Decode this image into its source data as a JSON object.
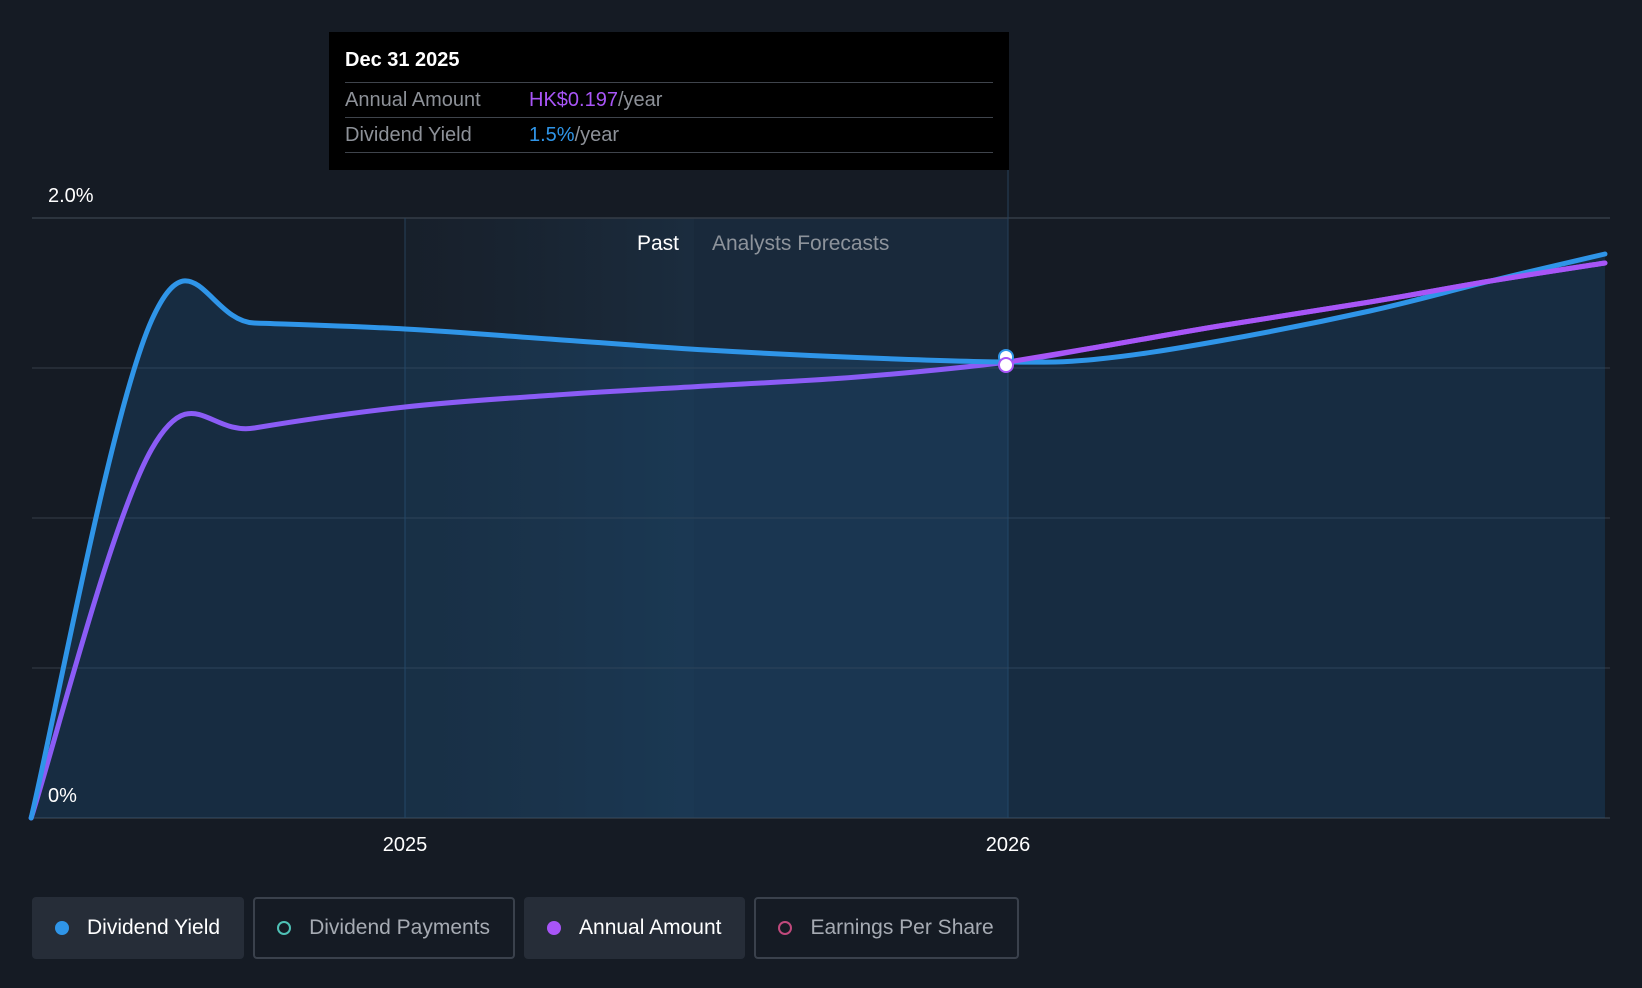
{
  "tooltip": {
    "date": "Dec 31 2025",
    "rows": [
      {
        "label": "Annual Amount",
        "value": "HK$0.197",
        "suffix": "/year",
        "color": "#a855f7"
      },
      {
        "label": "Dividend Yield",
        "value": "1.5%",
        "suffix": "/year",
        "color": "#2f95e8"
      }
    ]
  },
  "regions": {
    "past_label": "Past",
    "forecast_label": "Analysts Forecasts"
  },
  "legend": [
    {
      "label": "Dividend Yield",
      "active": true,
      "filled": true,
      "color": "#2f95e8"
    },
    {
      "label": "Dividend Payments",
      "active": false,
      "filled": false,
      "color": "#4fc1b6"
    },
    {
      "label": "Annual Amount",
      "active": true,
      "filled": true,
      "color": "#a855f7"
    },
    {
      "label": "Earnings Per Share",
      "active": false,
      "filled": false,
      "color": "#c0497c"
    }
  ],
  "colors": {
    "dividend_yield": "#2f95e8",
    "annual_amount": "#8b5cf6",
    "annual_amount_forecast": "#a855f7",
    "grid": "#353c47",
    "background": "#151b24"
  },
  "chart_data": {
    "type": "line",
    "y_tick_labels": [
      "2.0%",
      "0%"
    ],
    "ylim": [
      0,
      2.0
    ],
    "y_ticks": [
      0,
      0.5,
      1.0,
      1.5,
      2.0
    ],
    "x_tick_labels": [
      "2025",
      "2026"
    ],
    "x_ticks": [
      2025.0,
      2026.0
    ],
    "xlim": [
      2024.38,
      2026.99
    ],
    "past_start": 2025.0,
    "past_end": 2025.48,
    "highlight_x": 2026.0,
    "series": [
      {
        "name": "Dividend Yield",
        "points": [
          [
            2024.38,
            0.0
          ],
          [
            2024.58,
            1.66
          ],
          [
            2024.75,
            1.65
          ],
          [
            2025.0,
            1.63
          ],
          [
            2025.25,
            1.595
          ],
          [
            2025.5,
            1.56
          ],
          [
            2025.75,
            1.535
          ],
          [
            2026.0,
            1.52
          ],
          [
            2026.15,
            1.53
          ],
          [
            2026.35,
            1.59
          ],
          [
            2026.6,
            1.69
          ],
          [
            2026.8,
            1.79
          ],
          [
            2026.99,
            1.88
          ]
        ]
      },
      {
        "name": "Annual Amount",
        "points": [
          [
            2024.38,
            0.0
          ],
          [
            2024.58,
            1.23
          ],
          [
            2024.75,
            1.3
          ],
          [
            2025.0,
            1.37
          ],
          [
            2025.25,
            1.41
          ],
          [
            2025.5,
            1.44
          ],
          [
            2025.75,
            1.47
          ],
          [
            2026.0,
            1.52
          ],
          [
            2026.15,
            1.57
          ],
          [
            2026.35,
            1.64
          ],
          [
            2026.6,
            1.72
          ],
          [
            2026.8,
            1.79
          ],
          [
            2026.99,
            1.85
          ]
        ]
      }
    ]
  }
}
